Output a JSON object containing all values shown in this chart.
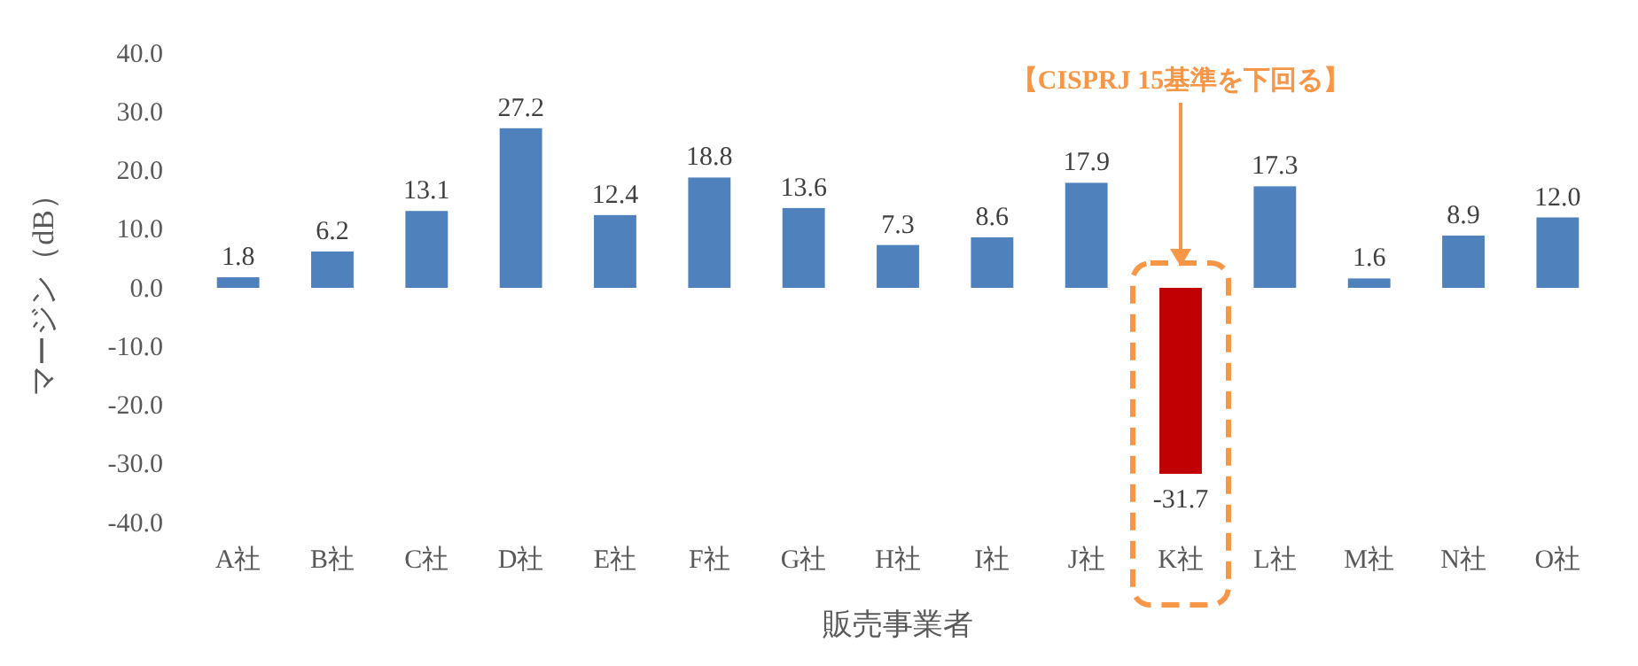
{
  "chart_data": {
    "type": "bar",
    "xlabel": "販売事業者",
    "ylabel": "マージン（dB）",
    "categories": [
      "A社",
      "B社",
      "C社",
      "D社",
      "E社",
      "F社",
      "G社",
      "H社",
      "I社",
      "J社",
      "K社",
      "L社",
      "M社",
      "N社",
      "O社"
    ],
    "values": [
      1.8,
      6.2,
      13.1,
      27.2,
      12.4,
      18.8,
      13.6,
      7.3,
      8.6,
      17.9,
      -31.7,
      17.3,
      1.6,
      8.9,
      12.0
    ],
    "colors": [
      "#4f81bd",
      "#4f81bd",
      "#4f81bd",
      "#4f81bd",
      "#4f81bd",
      "#4f81bd",
      "#4f81bd",
      "#4f81bd",
      "#4f81bd",
      "#4f81bd",
      "#c00000",
      "#4f81bd",
      "#4f81bd",
      "#4f81bd",
      "#4f81bd"
    ],
    "value_labels": [
      "1.8",
      "6.2",
      "13.1",
      "27.2",
      "12.4",
      "18.8",
      "13.6",
      "7.3",
      "8.6",
      "17.9",
      "-31.7",
      "17.3",
      "1.6",
      "8.9",
      "12.0"
    ],
    "ylim": [
      -40,
      40
    ],
    "yticks": [
      {
        "value": -40,
        "label": "-40.0"
      },
      {
        "value": -30,
        "label": "-30.0"
      },
      {
        "value": -20,
        "label": "-20.0"
      },
      {
        "value": -10,
        "label": "-10.0"
      },
      {
        "value": 0,
        "label": "0.0"
      },
      {
        "value": 10,
        "label": "10.0"
      },
      {
        "value": 20,
        "label": "20.0"
      },
      {
        "value": 30,
        "label": "30.0"
      },
      {
        "value": 40,
        "label": "40.0"
      }
    ],
    "grid": false,
    "annotations": [
      "【CISPRJ 15基準を下回る】"
    ]
  }
}
